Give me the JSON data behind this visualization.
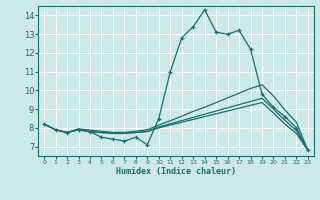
{
  "xlabel": "Humidex (Indice chaleur)",
  "xlim": [
    -0.5,
    23.5
  ],
  "ylim": [
    6.5,
    14.5
  ],
  "yticks": [
    7,
    8,
    9,
    10,
    11,
    12,
    13,
    14
  ],
  "xticks": [
    0,
    1,
    2,
    3,
    4,
    5,
    6,
    7,
    8,
    9,
    10,
    11,
    12,
    13,
    14,
    15,
    16,
    17,
    18,
    19,
    20,
    21,
    22,
    23
  ],
  "bg_color": "#cce8e8",
  "grid_color": "#ffffff",
  "line_color": "#1a6e6e",
  "series": [
    {
      "x": [
        0,
        1,
        2,
        3,
        4,
        5,
        6,
        7,
        8,
        9,
        10,
        11,
        12,
        13,
        14,
        15,
        16,
        17,
        18,
        19,
        20,
        21,
        22,
        23
      ],
      "y": [
        8.2,
        7.9,
        7.75,
        7.9,
        7.8,
        7.5,
        7.4,
        7.3,
        7.5,
        7.1,
        8.5,
        11.0,
        12.8,
        13.4,
        14.3,
        13.1,
        13.0,
        13.2,
        12.2,
        9.8,
        9.1,
        8.6,
        8.0,
        6.8
      ],
      "marker": "+"
    },
    {
      "x": [
        0,
        1,
        2,
        3,
        4,
        5,
        6,
        7,
        8,
        9,
        10,
        11,
        12,
        13,
        14,
        15,
        16,
        17,
        18,
        19,
        20,
        21,
        22,
        23
      ],
      "y": [
        8.2,
        7.9,
        7.75,
        7.9,
        7.8,
        7.75,
        7.7,
        7.7,
        7.75,
        7.8,
        8.0,
        8.15,
        8.3,
        8.45,
        8.6,
        8.75,
        8.9,
        9.05,
        9.2,
        9.35,
        8.8,
        8.2,
        7.7,
        6.8
      ],
      "marker": null
    },
    {
      "x": [
        0,
        1,
        2,
        3,
        4,
        5,
        6,
        7,
        8,
        9,
        10,
        11,
        12,
        13,
        14,
        15,
        16,
        17,
        18,
        19,
        20,
        21,
        22,
        23
      ],
      "y": [
        8.2,
        7.9,
        7.75,
        7.9,
        7.8,
        7.75,
        7.72,
        7.72,
        7.76,
        7.82,
        8.05,
        8.22,
        8.39,
        8.56,
        8.73,
        8.9,
        9.07,
        9.24,
        9.41,
        9.58,
        9.0,
        8.4,
        7.85,
        6.8
      ],
      "marker": null
    },
    {
      "x": [
        0,
        1,
        2,
        3,
        4,
        5,
        6,
        7,
        8,
        9,
        10,
        11,
        12,
        13,
        14,
        15,
        16,
        17,
        18,
        19,
        20,
        21,
        22,
        23
      ],
      "y": [
        8.2,
        7.9,
        7.75,
        7.95,
        7.88,
        7.82,
        7.76,
        7.76,
        7.82,
        7.9,
        8.15,
        8.38,
        8.62,
        8.88,
        9.1,
        9.35,
        9.6,
        9.85,
        10.1,
        10.3,
        9.7,
        8.95,
        8.3,
        6.8
      ],
      "marker": null
    }
  ]
}
